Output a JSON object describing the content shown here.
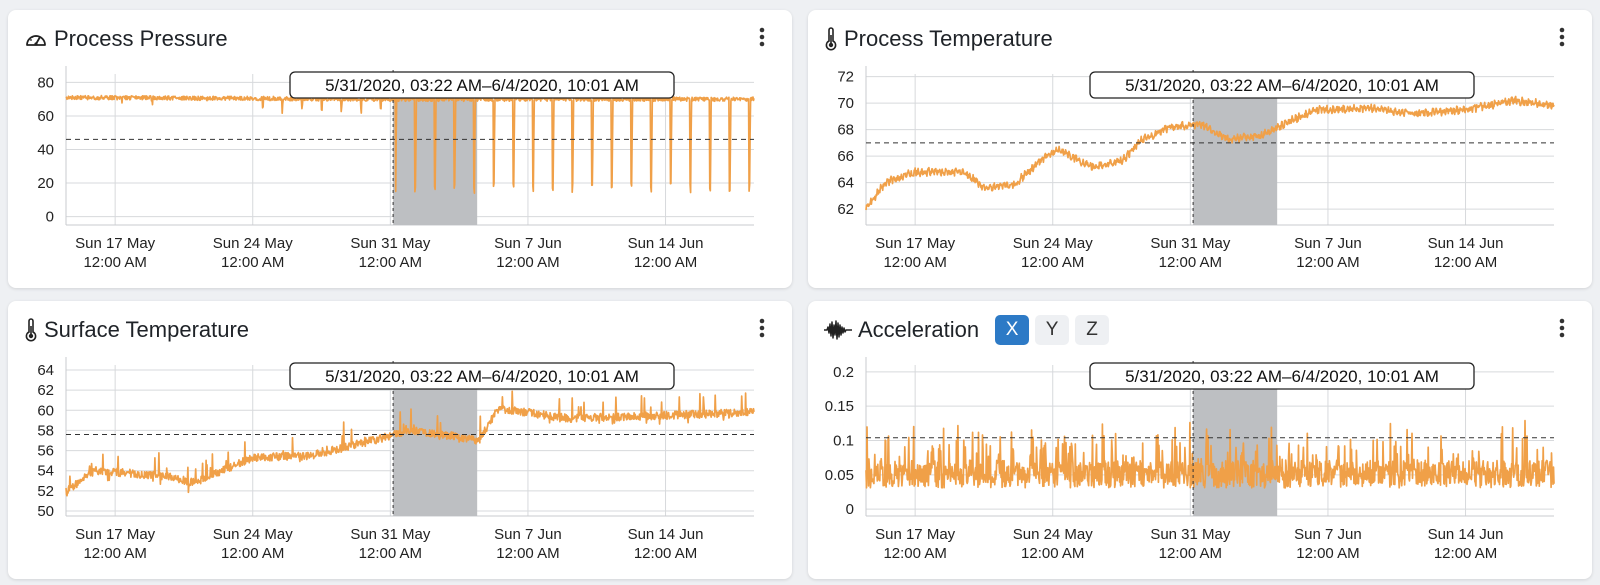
{
  "colors": {
    "series": "#f0a048",
    "highlight": "#bdbfc2",
    "active_axis_button": "#2d7ac6",
    "card_background": "#ffffff",
    "page_background": "#eef0f3"
  },
  "menu_icon": "kebab-menu-icon",
  "range_label": "5/31/2020, 03:22 AM–6/4/2020, 10:01 AM",
  "x_axis": {
    "start": "2020-05-14 12:00",
    "end": "2020-06-18 12:00",
    "ticks": [
      {
        "date": "2020-05-17 00:00",
        "line1": "Sun 17 May",
        "line2": "12:00 AM"
      },
      {
        "date": "2020-05-24 00:00",
        "line1": "Sun 24 May",
        "line2": "12:00 AM"
      },
      {
        "date": "2020-05-31 00:00",
        "line1": "Sun 31 May",
        "line2": "12:00 AM"
      },
      {
        "date": "2020-06-07 00:00",
        "line1": "Sun 7 Jun",
        "line2": "12:00 AM"
      },
      {
        "date": "2020-06-14 00:00",
        "line1": "Sun 14 Jun",
        "line2": "12:00 AM"
      }
    ]
  },
  "highlight": {
    "start": "2020-05-31 03:22",
    "end": "2020-06-04 10:01"
  },
  "cards": [
    {
      "title": "Process Pressure",
      "icon": "gauge-icon",
      "chart_data": {
        "type": "line",
        "ylim": [
          -5,
          85
        ],
        "yticks": [
          0,
          20,
          40,
          60,
          80
        ],
        "threshold": 46,
        "pattern": "pressure",
        "series": [
          {
            "values": [
              {
                "x": "2020-05-14 12:00",
                "y": 71
              },
              {
                "x": "2020-05-31 00:00",
                "y": 70
              },
              {
                "x": "2020-06-18 12:00",
                "y": 70
              }
            ]
          }
        ]
      }
    },
    {
      "title": "Process Temperature",
      "icon": "thermometer-icon",
      "chart_data": {
        "type": "line",
        "ylim": [
          60.8,
          72.2
        ],
        "yticks": [
          62,
          64,
          66,
          68,
          70,
          72
        ],
        "threshold": 67,
        "pattern": "temperature",
        "series": [
          {
            "values": [
              {
                "x": "2020-05-14 12:00",
                "y": 62.1
              },
              {
                "x": "2020-05-15 12:00",
                "y": 64
              },
              {
                "x": "2020-05-17 00:00",
                "y": 64.8
              },
              {
                "x": "2020-05-19 12:00",
                "y": 64.8
              },
              {
                "x": "2020-05-20 12:00",
                "y": 63.6
              },
              {
                "x": "2020-05-22 00:00",
                "y": 63.8
              },
              {
                "x": "2020-05-23 12:00",
                "y": 65.8
              },
              {
                "x": "2020-05-24 06:00",
                "y": 66.5
              },
              {
                "x": "2020-05-26 00:00",
                "y": 65.2
              },
              {
                "x": "2020-05-27 12:00",
                "y": 65.6
              },
              {
                "x": "2020-05-28 12:00",
                "y": 67.2
              },
              {
                "x": "2020-05-30 00:00",
                "y": 68.2
              },
              {
                "x": "2020-05-31 12:00",
                "y": 68.4
              },
              {
                "x": "2020-06-02 00:00",
                "y": 67.3
              },
              {
                "x": "2020-06-03 12:00",
                "y": 67.5
              },
              {
                "x": "2020-06-05 00:00",
                "y": 68.6
              },
              {
                "x": "2020-06-06 12:00",
                "y": 69.5
              },
              {
                "x": "2020-06-09 00:00",
                "y": 69.6
              },
              {
                "x": "2020-06-11 12:00",
                "y": 69.2
              },
              {
                "x": "2020-06-14 00:00",
                "y": 69.5
              },
              {
                "x": "2020-06-16 12:00",
                "y": 70.2
              },
              {
                "x": "2020-06-18 12:00",
                "y": 69.8
              }
            ]
          }
        ]
      }
    },
    {
      "title": "Surface Temperature",
      "icon": "thermometer-icon",
      "chart_data": {
        "type": "line",
        "ylim": [
          49.5,
          64.5
        ],
        "yticks": [
          50,
          52,
          54,
          56,
          58,
          60,
          62,
          64
        ],
        "threshold": 57.6,
        "pattern": "surface",
        "series": [
          {
            "values": [
              {
                "x": "2020-05-14 12:00",
                "y": 52
              },
              {
                "x": "2020-05-16 00:00",
                "y": 54
              },
              {
                "x": "2020-05-19 12:00",
                "y": 53.5
              },
              {
                "x": "2020-05-21 00:00",
                "y": 52.8
              },
              {
                "x": "2020-05-24 00:00",
                "y": 55.3
              },
              {
                "x": "2020-05-27 00:00",
                "y": 55.5
              },
              {
                "x": "2020-05-30 12:00",
                "y": 57.2
              },
              {
                "x": "2020-06-01 00:00",
                "y": 58
              },
              {
                "x": "2020-06-03 00:00",
                "y": 57.5
              },
              {
                "x": "2020-06-04 12:00",
                "y": 57
              },
              {
                "x": "2020-06-05 12:00",
                "y": 60.2
              },
              {
                "x": "2020-06-09 00:00",
                "y": 59.2
              },
              {
                "x": "2020-06-14 00:00",
                "y": 59.5
              },
              {
                "x": "2020-06-18 12:00",
                "y": 59.8
              }
            ]
          }
        ]
      }
    },
    {
      "title": "Acceleration",
      "icon": "waveform-icon",
      "axis_buttons": [
        {
          "label": "X",
          "active": true
        },
        {
          "label": "Y",
          "active": false
        },
        {
          "label": "Z",
          "active": false
        }
      ],
      "chart_data": {
        "type": "line",
        "ylim": [
          -0.01,
          0.21
        ],
        "yticks": [
          0,
          0.05,
          0.1,
          0.15,
          0.2
        ],
        "threshold": 0.104,
        "pattern": "vibration",
        "series": [
          {
            "values": [
              {
                "x": "2020-05-14 12:00",
                "y": 0.045
              },
              {
                "x": "2020-06-18 12:00",
                "y": 0.045
              }
            ]
          }
        ]
      }
    }
  ]
}
